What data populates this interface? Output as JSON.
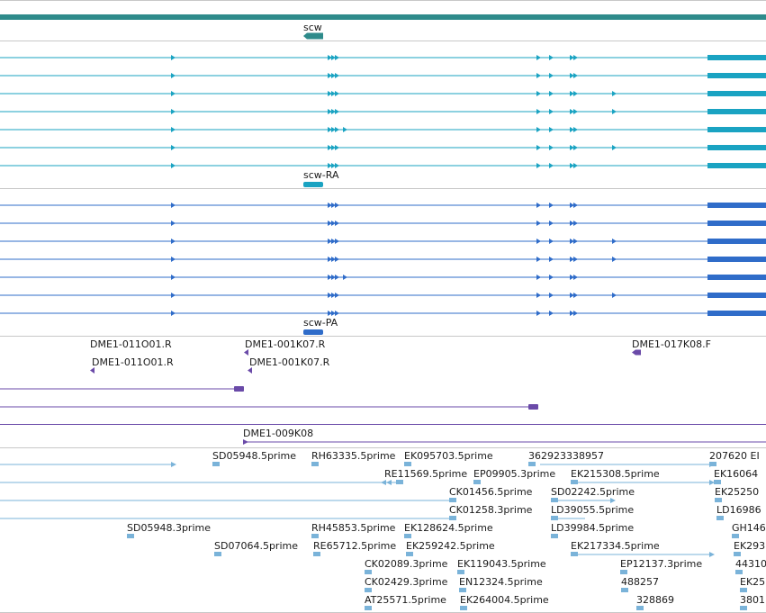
{
  "colors": {
    "gene": "#2e8b8b",
    "transcript_ra": "#1aa3c2",
    "transcript_pa": "#2f6cc9",
    "clone_end": "#6a4aa8",
    "est": "#7ab3d9",
    "divider": "#c8c8c8"
  },
  "gene": {
    "label": "scw"
  },
  "transcripts": [
    {
      "label": "scw-RA",
      "rows": 7
    },
    {
      "label": "scw-PA",
      "rows": 7
    }
  ],
  "clone_ends": [
    "DME1-011O01.R",
    "DME1-001K07.R",
    "DME1-017K08.F",
    "DME1-011O01.R",
    "DME1-001K07.R",
    "DME1-009K08"
  ],
  "est_labels": [
    "SD05948.5prime",
    "RH63335.5prime",
    "EK095703.5prime",
    "362923338957",
    "207620 EI",
    "RE11569.5prime",
    "EP09905.3prime",
    "EK215308.5prime",
    "EK16064",
    "CK01456.5prime",
    "SD02242.5prime",
    "EK25250",
    "CK01258.3prime",
    "LD39055.5prime",
    "LD16986",
    "SD05948.3prime",
    "RH45853.5prime",
    "EK128624.5prime",
    "LD39984.5prime",
    "GH146",
    "SD07064.5prime",
    "RE65712.5prime",
    "EK259242.5prime",
    "EK217334.5prime",
    "EK293",
    "CK02089.3prime",
    "EK119043.5prime",
    "EP12137.3prime",
    "44310",
    "CK02429.3prime",
    "EN12324.5prime",
    "488257",
    "EK25",
    "AT25571.5prime",
    "EK264004.5prime",
    "328869",
    "3801"
  ]
}
